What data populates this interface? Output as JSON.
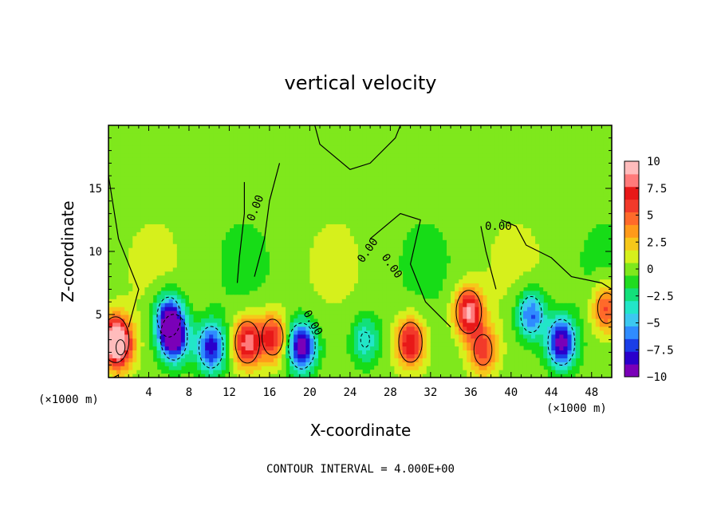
{
  "chart_data": {
    "type": "heatmap",
    "title": "vertical velocity",
    "xlabel": "X-coordinate",
    "ylabel": "Z-coordinate",
    "x_unit_left": "(×1000 m)",
    "x_unit_right": "(×1000 m)",
    "xlim": [
      0,
      50
    ],
    "ylim": [
      0,
      20
    ],
    "x_ticks": [
      4,
      8,
      12,
      16,
      20,
      24,
      28,
      32,
      36,
      40,
      44,
      48
    ],
    "x_tick_labels": [
      "4",
      "8",
      "12",
      "16",
      "20",
      "24",
      "28",
      "32",
      "36",
      "40",
      "44",
      "48"
    ],
    "y_ticks": [
      5,
      10,
      15
    ],
    "y_tick_labels": [
      "5",
      "10",
      "15"
    ],
    "contour_interval_text": "CONTOUR INTERVAL = 4.000E+00",
    "contour_labels": [
      "0.00",
      "0.00",
      "0.00",
      "0.00",
      "0.00",
      "0.00"
    ],
    "colorbar": {
      "min": -10,
      "max": 10,
      "ticks": [
        "10",
        "7.5",
        "5",
        "2.5",
        "0",
        "−2.5",
        "−5",
        "−7.5",
        "−10"
      ],
      "colors": [
        "#7a00b8",
        "#2a00cc",
        "#1a3ee8",
        "#2f8cff",
        "#3cc8f0",
        "#22e6c8",
        "#12e07a",
        "#20dc20",
        "#7fe81c",
        "#d6f01c",
        "#f6c81a",
        "#ff9a1a",
        "#ff6a2a",
        "#f23a2a",
        "#e81818",
        "#ff7a7a",
        "#ffbcbc"
      ]
    },
    "features": [
      {
        "x": 0.7,
        "z": 3.0,
        "w": 3.0,
        "peak": 10
      },
      {
        "x": 1.2,
        "z": 2.4,
        "w": 1.5,
        "peak": 4
      },
      {
        "x": 6.0,
        "z": 4.8,
        "w": -6.5,
        "peak": -8
      },
      {
        "x": 6.5,
        "z": 3.2,
        "w": -4.0,
        "peak": -10
      },
      {
        "x": 10.2,
        "z": 2.4,
        "w": -8.0,
        "peak": -8.5
      },
      {
        "x": 13.8,
        "z": 2.8,
        "w": 6.5,
        "peak": 8.5
      },
      {
        "x": 16.3,
        "z": 3.2,
        "w": 6.5,
        "peak": 7
      },
      {
        "x": 19.2,
        "z": 2.5,
        "w": -9.0,
        "peak": -10
      },
      {
        "x": 25.5,
        "z": 3.0,
        "w": -3.5,
        "peak": -4
      },
      {
        "x": 30.0,
        "z": 2.8,
        "w": 8.0,
        "peak": 8
      },
      {
        "x": 35.8,
        "z": 5.2,
        "w": 8.5,
        "peak": 9
      },
      {
        "x": 37.2,
        "z": 2.2,
        "w": 6.0,
        "peak": 6
      },
      {
        "x": 42.0,
        "z": 5.0,
        "w": -5.0,
        "peak": -7
      },
      {
        "x": 45.0,
        "z": 2.8,
        "w": -9.0,
        "peak": -10
      },
      {
        "x": 49.5,
        "z": 5.5,
        "w": 5.0,
        "peak": 6
      }
    ]
  }
}
